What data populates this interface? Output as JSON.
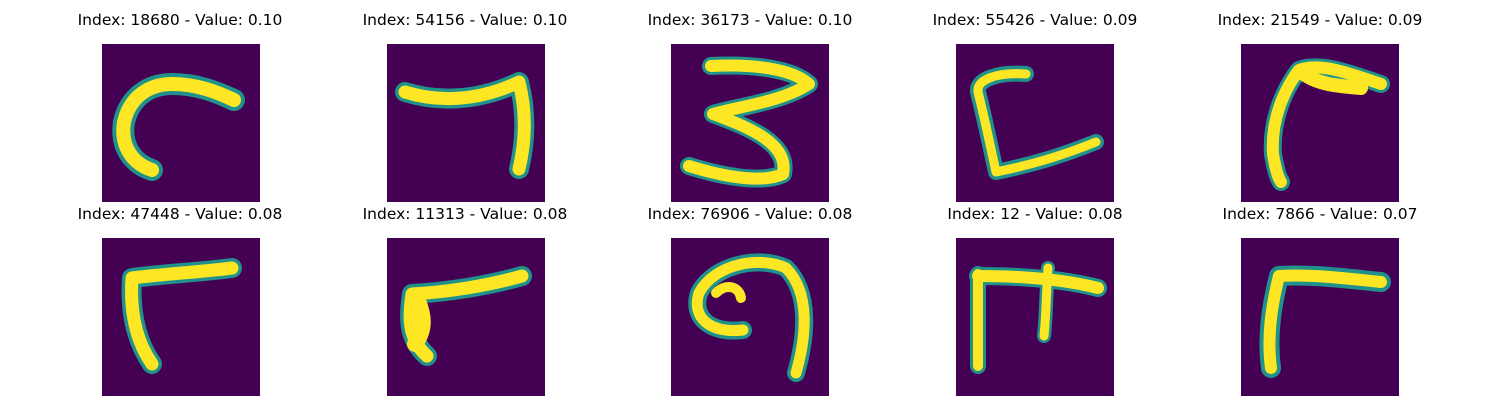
{
  "figure": {
    "background_color": "#440154",
    "stroke_color": "#fde725",
    "edge_color": "#21918c",
    "panels": [
      {
        "title": "Index: 18680 - Value: 0.10",
        "glyph": "hook-curve-glyph"
      },
      {
        "title": "Index: 54156 - Value: 0.10",
        "glyph": "seven-like-glyph"
      },
      {
        "title": "Index: 36173 - Value: 0.10",
        "glyph": "three-like-glyph"
      },
      {
        "title": "Index: 55426 - Value: 0.09",
        "glyph": "open-c-glyph"
      },
      {
        "title": "Index: 21549 - Value: 0.09",
        "glyph": "flag-curve-glyph"
      },
      {
        "title": "Index: 47448 - Value: 0.08",
        "glyph": "corner-glyph"
      },
      {
        "title": "Index: 11313 - Value: 0.08",
        "glyph": "slanted-corner-glyph"
      },
      {
        "title": "Index: 76906 - Value: 0.08",
        "glyph": "loop-glyph"
      },
      {
        "title": "Index: 12 - Value: 0.08",
        "glyph": "double-bar-glyph"
      },
      {
        "title": "Index: 7866 - Value: 0.07",
        "glyph": "corner-glyph-2"
      }
    ]
  }
}
